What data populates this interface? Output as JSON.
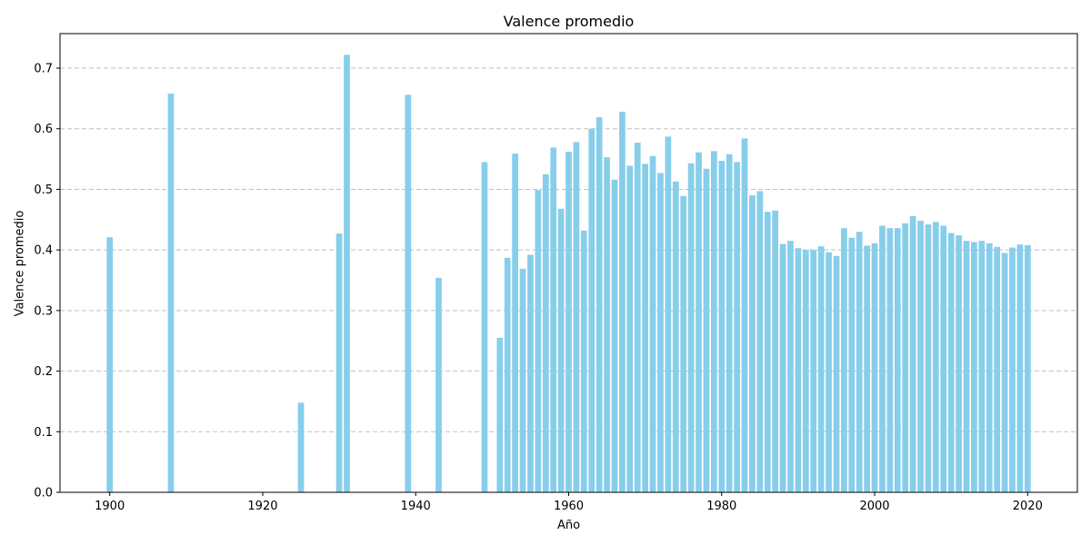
{
  "chart_data": {
    "type": "bar",
    "title": "Valence promedio",
    "xlabel": "Año",
    "ylabel": "Valence promedio",
    "bar_color": "#87ceeb",
    "grid_color": "#c0c0c0",
    "xlim": [
      1893.5,
      2026.5
    ],
    "ylim": [
      0,
      0.757
    ],
    "x_ticks": [
      1900,
      1920,
      1940,
      1960,
      1980,
      2000,
      2020
    ],
    "y_ticks": [
      0.0,
      0.1,
      0.2,
      0.3,
      0.4,
      0.5,
      0.6,
      0.7
    ],
    "y_tick_labels": [
      "0.0",
      "0.1",
      "0.2",
      "0.3",
      "0.4",
      "0.5",
      "0.6",
      "0.7"
    ],
    "grid": "y-dashed",
    "x": [
      1900,
      1908,
      1925,
      1930,
      1931,
      1939,
      1943,
      1949,
      1951,
      1952,
      1953,
      1954,
      1955,
      1956,
      1957,
      1958,
      1959,
      1960,
      1961,
      1962,
      1963,
      1964,
      1965,
      1966,
      1967,
      1968,
      1969,
      1970,
      1971,
      1972,
      1973,
      1974,
      1975,
      1976,
      1977,
      1978,
      1979,
      1980,
      1981,
      1982,
      1983,
      1984,
      1985,
      1986,
      1987,
      1988,
      1989,
      1990,
      1991,
      1992,
      1993,
      1994,
      1995,
      1996,
      1997,
      1998,
      1999,
      2000,
      2001,
      2002,
      2003,
      2004,
      2005,
      2006,
      2007,
      2008,
      2009,
      2010,
      2011,
      2012,
      2013,
      2014,
      2015,
      2016,
      2017,
      2018,
      2019,
      2020
    ],
    "values": [
      0.421,
      0.658,
      0.148,
      0.427,
      0.722,
      0.656,
      0.354,
      0.545,
      0.255,
      0.387,
      0.559,
      0.369,
      0.392,
      0.499,
      0.525,
      0.569,
      0.468,
      0.562,
      0.578,
      0.432,
      0.6,
      0.619,
      0.553,
      0.516,
      0.628,
      0.539,
      0.577,
      0.542,
      0.555,
      0.527,
      0.587,
      0.513,
      0.489,
      0.543,
      0.561,
      0.534,
      0.563,
      0.547,
      0.558,
      0.545,
      0.584,
      0.49,
      0.497,
      0.463,
      0.465,
      0.41,
      0.415,
      0.403,
      0.4,
      0.4,
      0.406,
      0.396,
      0.39,
      0.436,
      0.42,
      0.43,
      0.407,
      0.411,
      0.44,
      0.436,
      0.436,
      0.444,
      0.456,
      0.448,
      0.442,
      0.446,
      0.44,
      0.428,
      0.424,
      0.415,
      0.413,
      0.415,
      0.411,
      0.405,
      0.395,
      0.404,
      0.409,
      0.408
    ]
  }
}
